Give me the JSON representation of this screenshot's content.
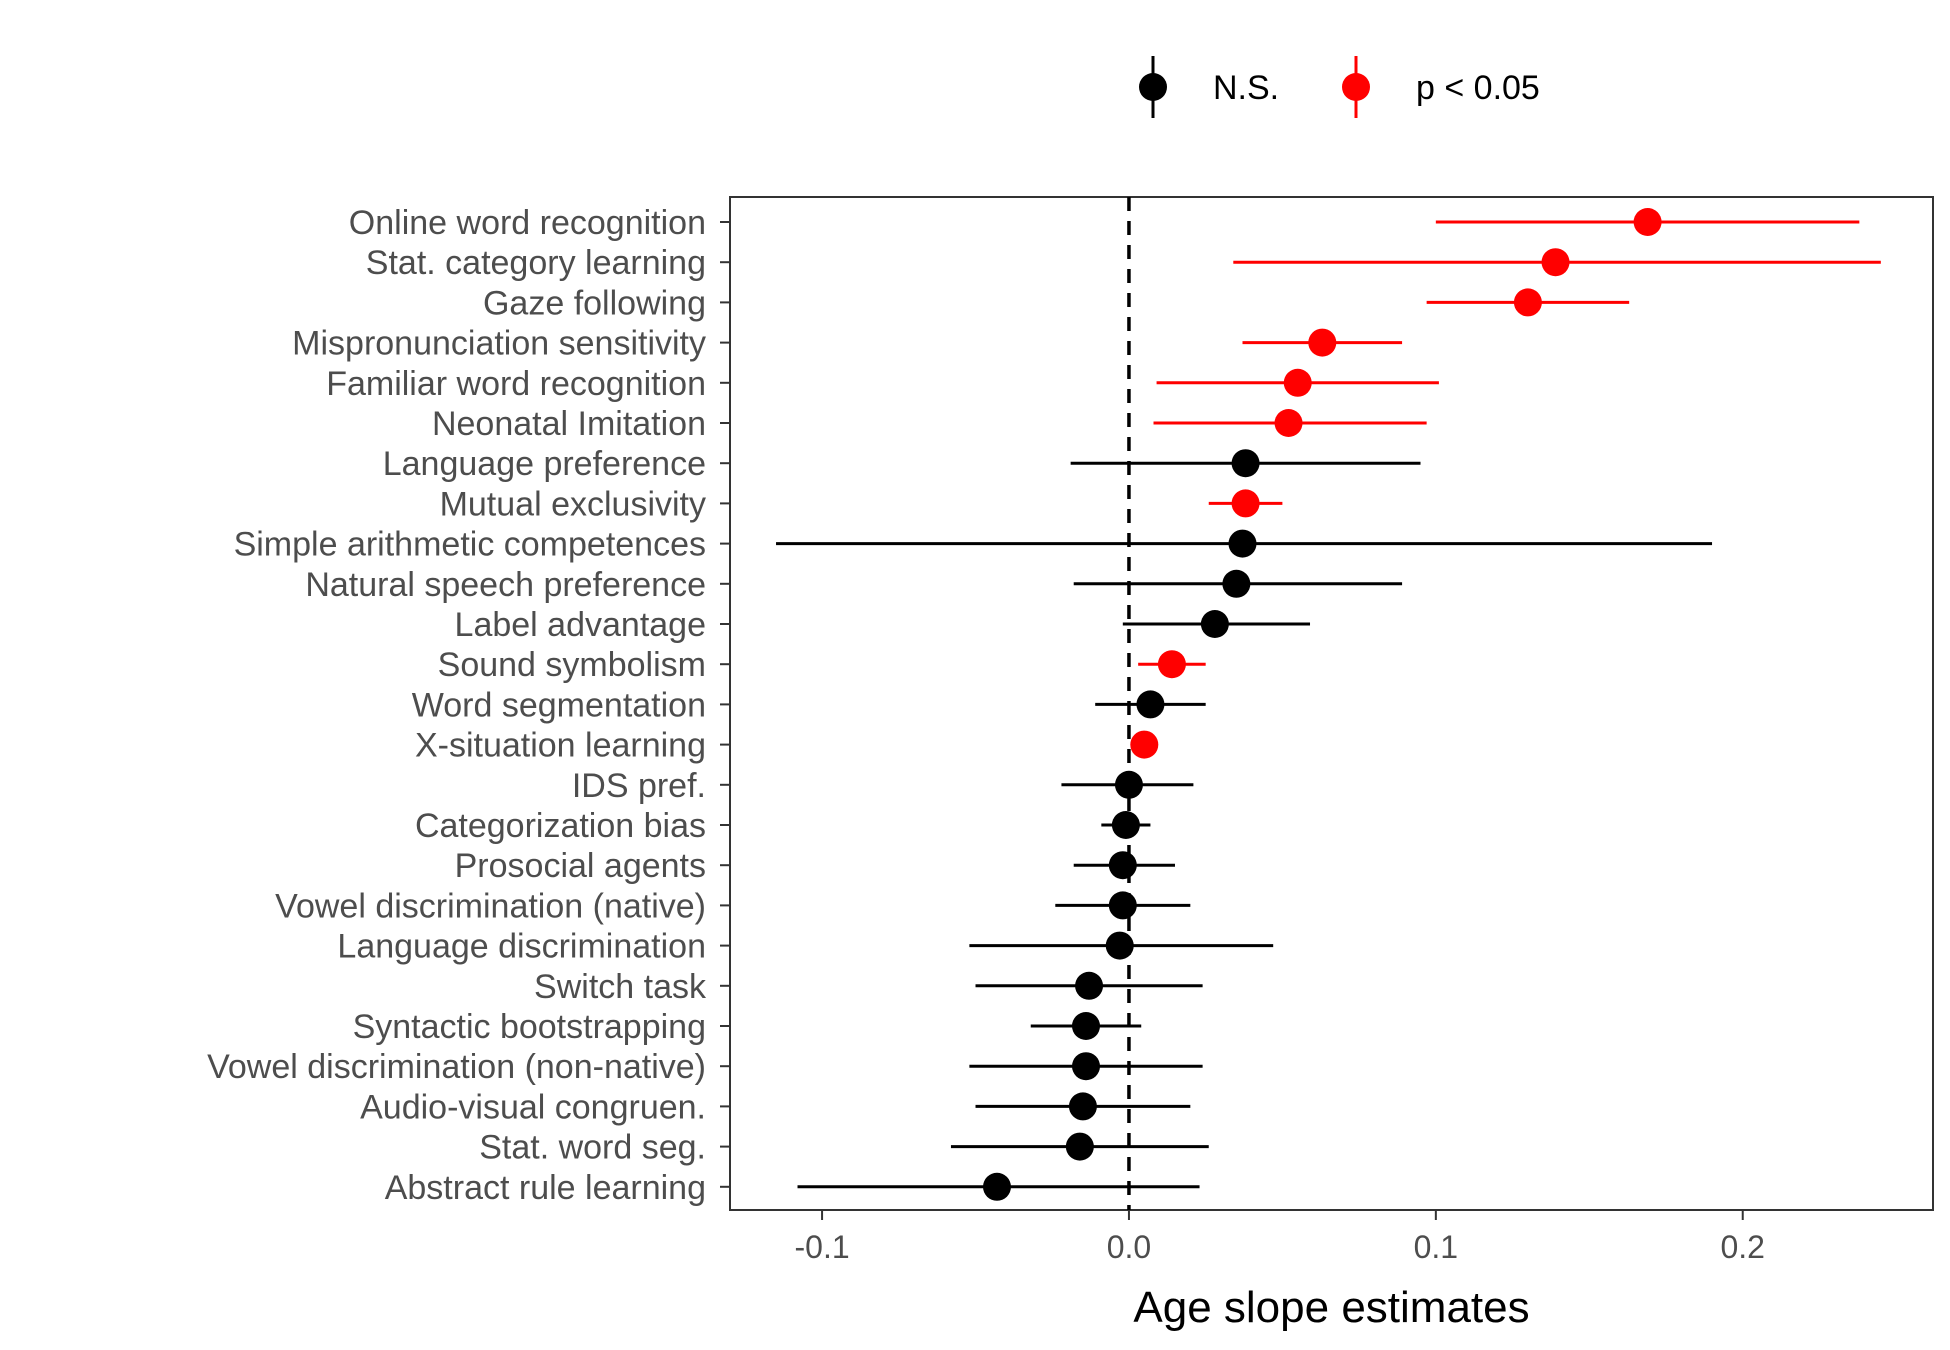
{
  "chart_data": {
    "type": "scatter",
    "subtype": "forest-plot-point-range",
    "title": "",
    "xlabel": "Age slope estimates",
    "ylabel": "",
    "xlim": [
      -0.13,
      0.262
    ],
    "xticks": [
      -0.1,
      0.0,
      0.1,
      0.2
    ],
    "xtick_labels": [
      "-0.1",
      "0.0",
      "0.1",
      "0.2"
    ],
    "reference_line": {
      "x": 0,
      "style": "dashed"
    },
    "grid": false,
    "legend": {
      "position": "top",
      "entries": [
        {
          "label": "N.S.",
          "color": "#000000"
        },
        {
          "label": "p < 0.05",
          "color": "#ff0000"
        }
      ]
    },
    "series": [
      {
        "label": "Online word recognition",
        "estimate": 0.169,
        "lower": 0.1,
        "upper": 0.238,
        "significant": true
      },
      {
        "label": "Stat. category learning",
        "estimate": 0.139,
        "lower": 0.034,
        "upper": 0.245,
        "significant": true
      },
      {
        "label": "Gaze following",
        "estimate": 0.13,
        "lower": 0.097,
        "upper": 0.163,
        "significant": true
      },
      {
        "label": "Mispronunciation sensitivity",
        "estimate": 0.063,
        "lower": 0.037,
        "upper": 0.089,
        "significant": true
      },
      {
        "label": "Familiar word recognition",
        "estimate": 0.055,
        "lower": 0.009,
        "upper": 0.101,
        "significant": true
      },
      {
        "label": "Neonatal Imitation",
        "estimate": 0.052,
        "lower": 0.008,
        "upper": 0.097,
        "significant": true
      },
      {
        "label": "Language preference",
        "estimate": 0.038,
        "lower": -0.019,
        "upper": 0.095,
        "significant": false
      },
      {
        "label": "Mutual exclusivity",
        "estimate": 0.038,
        "lower": 0.026,
        "upper": 0.05,
        "significant": true
      },
      {
        "label": "Simple arithmetic competences",
        "estimate": 0.037,
        "lower": -0.115,
        "upper": 0.19,
        "significant": false
      },
      {
        "label": "Natural speech preference",
        "estimate": 0.035,
        "lower": -0.018,
        "upper": 0.089,
        "significant": false
      },
      {
        "label": "Label advantage",
        "estimate": 0.028,
        "lower": -0.002,
        "upper": 0.059,
        "significant": false
      },
      {
        "label": "Sound symbolism",
        "estimate": 0.014,
        "lower": 0.003,
        "upper": 0.025,
        "significant": true
      },
      {
        "label": "Word segmentation",
        "estimate": 0.007,
        "lower": -0.011,
        "upper": 0.025,
        "significant": false
      },
      {
        "label": "X-situation learning",
        "estimate": 0.005,
        "lower": 0.005,
        "upper": 0.005,
        "significant": true
      },
      {
        "label": "IDS pref.",
        "estimate": 0.0,
        "lower": -0.022,
        "upper": 0.021,
        "significant": false
      },
      {
        "label": "Categorization bias",
        "estimate": -0.001,
        "lower": -0.009,
        "upper": 0.007,
        "significant": false
      },
      {
        "label": "Prosocial agents",
        "estimate": -0.002,
        "lower": -0.018,
        "upper": 0.015,
        "significant": false
      },
      {
        "label": "Vowel discrimination (native)",
        "estimate": -0.002,
        "lower": -0.024,
        "upper": 0.02,
        "significant": false
      },
      {
        "label": "Language discrimination",
        "estimate": -0.003,
        "lower": -0.052,
        "upper": 0.047,
        "significant": false
      },
      {
        "label": "Switch task",
        "estimate": -0.013,
        "lower": -0.05,
        "upper": 0.024,
        "significant": false
      },
      {
        "label": "Syntactic bootstrapping",
        "estimate": -0.014,
        "lower": -0.032,
        "upper": 0.004,
        "significant": false
      },
      {
        "label": "Vowel discrimination (non-native)",
        "estimate": -0.014,
        "lower": -0.052,
        "upper": 0.024,
        "significant": false
      },
      {
        "label": "Audio-visual congruen.",
        "estimate": -0.015,
        "lower": -0.05,
        "upper": 0.02,
        "significant": false
      },
      {
        "label": "Stat. word seg.",
        "estimate": -0.016,
        "lower": -0.058,
        "upper": 0.026,
        "significant": false
      },
      {
        "label": "Abstract rule learning",
        "estimate": -0.043,
        "lower": -0.108,
        "upper": 0.023,
        "significant": false
      }
    ]
  }
}
